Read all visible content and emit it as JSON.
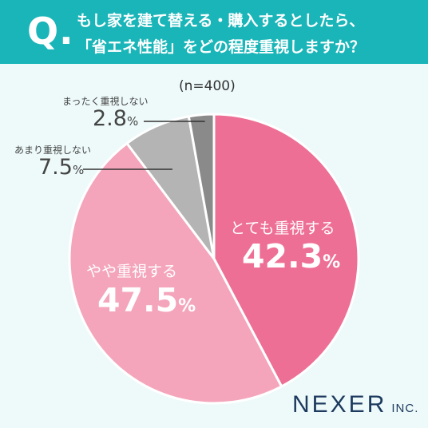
{
  "header": {
    "q_mark": "Q.",
    "line1": "もし家を建て替える・購入するとしたら、",
    "line2": "「省エネ性能」をどの程度重視しますか？"
  },
  "sample": "(n=400)",
  "chart_data": {
    "type": "pie",
    "unit": "%",
    "slices": [
      {
        "label": "とても重視する",
        "value": 42.3,
        "display": "42.3",
        "color": "#ee6f95"
      },
      {
        "label": "やや重視する",
        "value": 47.5,
        "display": "47.5",
        "color": "#f4a5bb"
      },
      {
        "label": "あまり重視しない",
        "value": 7.5,
        "display": "7.5",
        "color": "#b4b4b4"
      },
      {
        "label": "まったく重視しない",
        "value": 2.8,
        "display": "2.8",
        "color": "#8a8a8a"
      }
    ]
  },
  "brand": {
    "name": "NEXER",
    "suffix": "INC."
  },
  "colors": {
    "header_bg": "#1ab5b8",
    "page_bg": "#eefafa",
    "brand": "#1d3a5e"
  }
}
